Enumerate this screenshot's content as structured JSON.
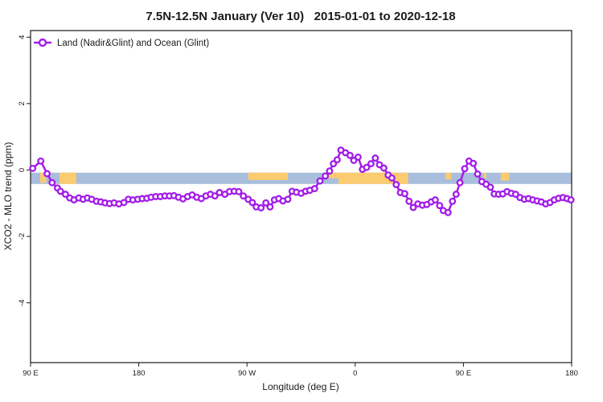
{
  "title": "7.5N-12.5N January (Ver 10)   2015-01-01 to 2020-12-18",
  "legend": {
    "label": "Land (Nadir&Glint) and Ocean (Glint)",
    "position": "top-left"
  },
  "colors": {
    "series": "#A21CE8",
    "marker_fill": "#ffffff",
    "ocean_band": "#A8BEDC",
    "land_band": "#FBCB70",
    "axis": "#1a1a1a"
  },
  "chart_data": {
    "type": "line",
    "title": "7.5N-12.5N January (Ver 10)   2015-01-01 to 2020-12-18",
    "xlabel": "Longitude (deg E)",
    "ylabel": "XCO2 - MLO trend (ppm)",
    "xlim": [
      90,
      540
    ],
    "ylim": [
      -5.8,
      4.2
    ],
    "grid": false,
    "legend_position": "top-left",
    "x_ticks": [
      {
        "value": 90,
        "label": "90 E"
      },
      {
        "value": 180,
        "label": "180"
      },
      {
        "value": 270,
        "label": "90 W"
      },
      {
        "value": 360,
        "label": "0"
      },
      {
        "value": 450,
        "label": "90 E"
      },
      {
        "value": 540,
        "label": "180"
      }
    ],
    "y_ticks": [
      {
        "value": -4,
        "label": "-4"
      },
      {
        "value": -2,
        "label": "-2"
      },
      {
        "value": 0,
        "label": "0"
      },
      {
        "value": 2,
        "label": "2"
      },
      {
        "value": 4,
        "label": "4"
      }
    ],
    "bands": {
      "ocean": {
        "x_range": [
          90,
          540
        ],
        "y_range": [
          -0.42,
          -0.08
        ],
        "meaning": "ocean (glint) sampling band"
      },
      "land_segments": {
        "meaning": "land longitude segments",
        "ranges": [
          {
            "from": 98,
            "to": 103,
            "h": 0.9
          },
          {
            "from": 114,
            "to": 128,
            "h": 1.0
          },
          {
            "from": 271,
            "to": 304,
            "h": 0.65
          },
          {
            "from": 335,
            "to": 346,
            "h": 0.5
          },
          {
            "from": 346,
            "to": 404,
            "h": 1.0
          },
          {
            "from": 435,
            "to": 440,
            "h": 0.6
          },
          {
            "from": 467,
            "to": 469,
            "h": 0.5
          },
          {
            "from": 481,
            "to": 488,
            "h": 0.7
          }
        ]
      }
    },
    "series": [
      {
        "name": "Land (Nadir&Glint) and Ocean (Glint)",
        "marker": "open-circle",
        "points": [
          [
            91.8,
            0.05
          ],
          [
            98.5,
            0.27
          ],
          [
            103.8,
            -0.11
          ],
          [
            107.9,
            -0.38
          ],
          [
            112.3,
            -0.54
          ],
          [
            114.9,
            -0.64
          ],
          [
            119.0,
            -0.73
          ],
          [
            122.6,
            -0.84
          ],
          [
            126.1,
            -0.9
          ],
          [
            130.1,
            -0.84
          ],
          [
            133.7,
            -0.88
          ],
          [
            137.3,
            -0.84
          ],
          [
            140.8,
            -0.88
          ],
          [
            144.8,
            -0.94
          ],
          [
            148.4,
            -0.96
          ],
          [
            152.0,
            -0.99
          ],
          [
            155.7,
            -1.01
          ],
          [
            159.5,
            -0.99
          ],
          [
            163.5,
            -1.02
          ],
          [
            167.6,
            -0.98
          ],
          [
            171.4,
            -0.88
          ],
          [
            175.1,
            -0.9
          ],
          [
            179.1,
            -0.88
          ],
          [
            182.9,
            -0.86
          ],
          [
            186.7,
            -0.85
          ],
          [
            190.3,
            -0.82
          ],
          [
            194.1,
            -0.8
          ],
          [
            197.9,
            -0.8
          ],
          [
            201.7,
            -0.78
          ],
          [
            205.5,
            -0.78
          ],
          [
            209.2,
            -0.77
          ],
          [
            213.0,
            -0.82
          ],
          [
            216.8,
            -0.87
          ],
          [
            220.6,
            -0.8
          ],
          [
            224.4,
            -0.75
          ],
          [
            228.2,
            -0.82
          ],
          [
            232.0,
            -0.86
          ],
          [
            235.8,
            -0.78
          ],
          [
            239.6,
            -0.73
          ],
          [
            243.3,
            -0.78
          ],
          [
            247.1,
            -0.68
          ],
          [
            251.6,
            -0.73
          ],
          [
            255.4,
            -0.65
          ],
          [
            259.4,
            -0.64
          ],
          [
            263.2,
            -0.65
          ],
          [
            267.0,
            -0.78
          ],
          [
            271.0,
            -0.88
          ],
          [
            274.5,
            -0.98
          ],
          [
            277.7,
            -1.11
          ],
          [
            281.7,
            -1.14
          ],
          [
            285.7,
            -0.99
          ],
          [
            289.2,
            -1.11
          ],
          [
            292.8,
            -0.9
          ],
          [
            296.4,
            -0.86
          ],
          [
            299.9,
            -0.93
          ],
          [
            304.0,
            -0.88
          ],
          [
            307.5,
            -0.64
          ],
          [
            311.1,
            -0.67
          ],
          [
            315.1,
            -0.7
          ],
          [
            318.7,
            -0.64
          ],
          [
            322.2,
            -0.61
          ],
          [
            326.2,
            -0.56
          ],
          [
            330.7,
            -0.33
          ],
          [
            335.2,
            -0.18
          ],
          [
            338.7,
            -0.03
          ],
          [
            341.9,
            0.19
          ],
          [
            345.0,
            0.31
          ],
          [
            348.1,
            0.6
          ],
          [
            351.9,
            0.52
          ],
          [
            355.7,
            0.44
          ],
          [
            358.8,
            0.29
          ],
          [
            362.4,
            0.39
          ],
          [
            366.0,
            0.02
          ],
          [
            369.5,
            0.08
          ],
          [
            373.1,
            0.19
          ],
          [
            376.7,
            0.36
          ],
          [
            380.2,
            0.16
          ],
          [
            383.8,
            0.06
          ],
          [
            387.4,
            -0.15
          ],
          [
            390.5,
            -0.24
          ],
          [
            394.1,
            -0.44
          ],
          [
            397.6,
            -0.68
          ],
          [
            401.2,
            -0.71
          ],
          [
            404.8,
            -0.94
          ],
          [
            408.3,
            -1.13
          ],
          [
            412.1,
            -1.02
          ],
          [
            415.9,
            -1.06
          ],
          [
            419.5,
            -1.04
          ],
          [
            423.2,
            -0.96
          ],
          [
            426.6,
            -0.9
          ],
          [
            430.2,
            -1.07
          ],
          [
            433.2,
            -1.22
          ],
          [
            437.2,
            -1.28
          ],
          [
            440.9,
            -0.94
          ],
          [
            443.9,
            -0.73
          ],
          [
            447.1,
            -0.38
          ],
          [
            451.1,
            0.04
          ],
          [
            454.6,
            0.27
          ],
          [
            458.2,
            0.2
          ],
          [
            461.8,
            -0.12
          ],
          [
            465.3,
            -0.35
          ],
          [
            468.9,
            -0.43
          ],
          [
            472.5,
            -0.52
          ],
          [
            475.6,
            -0.72
          ],
          [
            479.2,
            -0.73
          ],
          [
            482.7,
            -0.72
          ],
          [
            486.3,
            -0.65
          ],
          [
            489.9,
            -0.7
          ],
          [
            493.4,
            -0.73
          ],
          [
            497.0,
            -0.83
          ],
          [
            500.6,
            -0.88
          ],
          [
            504.1,
            -0.86
          ],
          [
            507.7,
            -0.9
          ],
          [
            511.3,
            -0.93
          ],
          [
            514.8,
            -0.96
          ],
          [
            518.4,
            -1.02
          ],
          [
            522.0,
            -0.98
          ],
          [
            525.5,
            -0.9
          ],
          [
            529.1,
            -0.85
          ],
          [
            532.7,
            -0.83
          ],
          [
            536.2,
            -0.86
          ],
          [
            539.4,
            -0.9
          ]
        ]
      }
    ]
  }
}
